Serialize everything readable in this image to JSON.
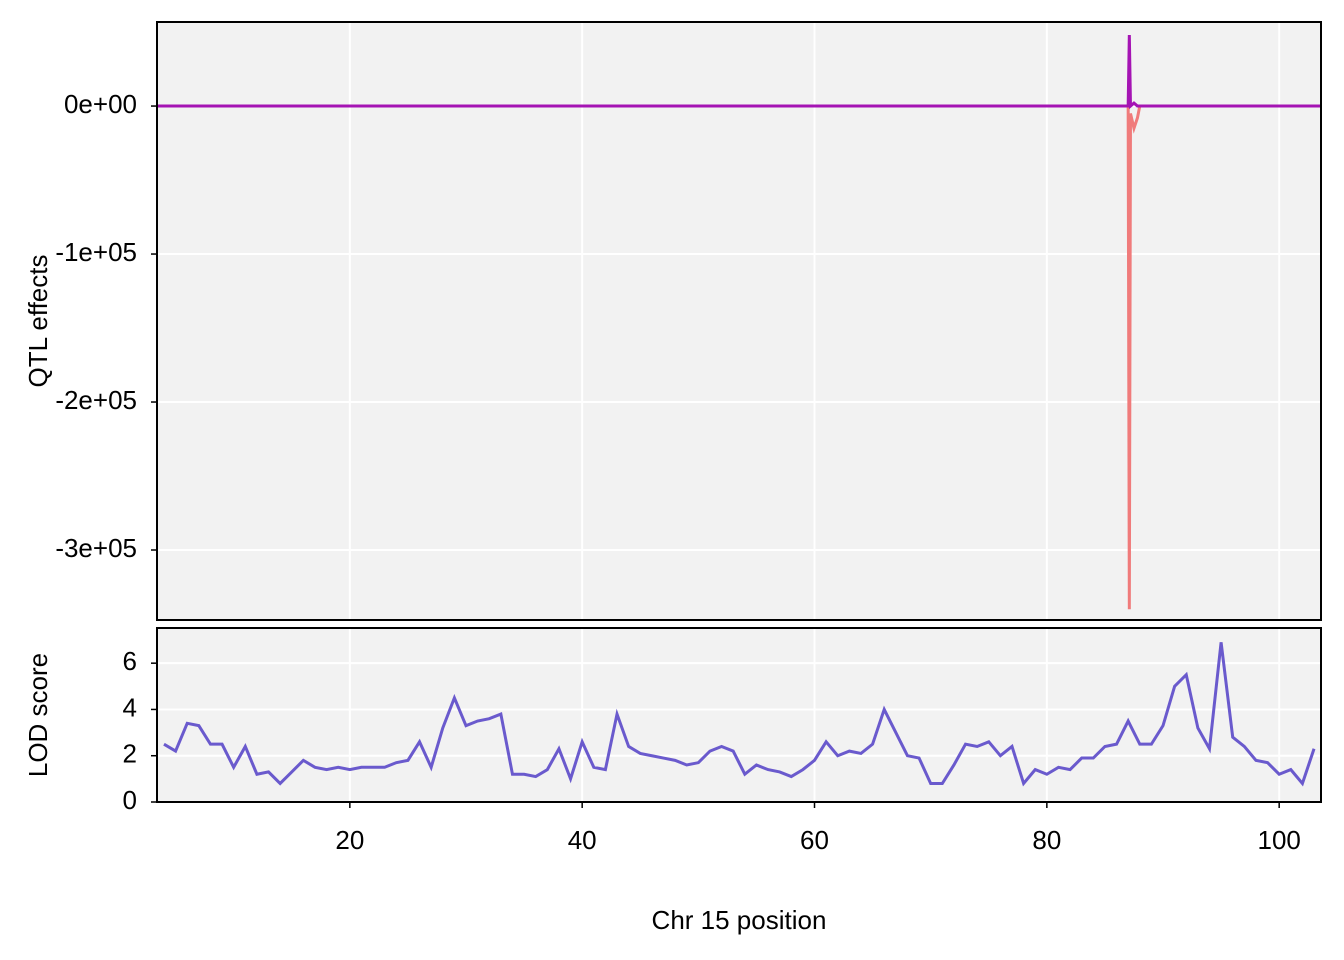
{
  "chart_data": [
    {
      "type": "line",
      "ylabel": "QTL effects",
      "x": [
        3.4,
        86.9,
        87.0,
        87.1,
        87.2,
        87.5,
        87.8,
        88.0,
        103.6
      ],
      "series": [
        {
          "color": "#f07b7b",
          "values": [
            0,
            0,
            0,
            -340000,
            -5000,
            -15000,
            -8000,
            0,
            0
          ]
        },
        {
          "color": "#a514b4",
          "values": [
            0,
            0,
            0,
            48000,
            0,
            2000,
            0,
            0,
            0
          ]
        }
      ],
      "xlim": [
        3.4,
        103.6
      ],
      "ylim": [
        -347300,
        56800
      ],
      "xticks": [
        20,
        40,
        60,
        80,
        100
      ],
      "yticks": [
        {
          "value": 0,
          "label": "0e+00"
        },
        {
          "value": -100000,
          "label": "-1e+05"
        },
        {
          "value": -200000,
          "label": "-2e+05"
        },
        {
          "value": -300000,
          "label": "-3e+05"
        }
      ],
      "grid": true
    },
    {
      "type": "line",
      "ylabel": "LOD score",
      "xlabel": "Chr 15 position",
      "x": [
        4,
        5,
        6,
        7,
        8,
        9,
        10,
        11,
        12,
        13,
        14,
        15,
        16,
        17,
        18,
        19,
        20,
        21,
        22,
        23,
        24,
        25,
        26,
        27,
        28,
        29,
        30,
        31,
        32,
        33,
        34,
        35,
        36,
        37,
        38,
        39,
        40,
        41,
        42,
        43,
        44,
        45,
        46,
        47,
        48,
        49,
        50,
        51,
        52,
        53,
        54,
        55,
        56,
        57,
        58,
        59,
        60,
        61,
        62,
        63,
        64,
        65,
        66,
        67,
        68,
        69,
        70,
        71,
        72,
        73,
        74,
        75,
        76,
        77,
        78,
        79,
        80,
        81,
        82,
        83,
        84,
        85,
        86,
        87,
        88,
        89,
        90,
        91,
        92,
        93,
        94,
        95,
        96,
        97,
        98,
        99,
        100,
        101,
        102,
        103
      ],
      "series": [
        {
          "color": "#6a5acd",
          "values": [
            2.5,
            2.2,
            3.4,
            3.3,
            2.5,
            2.5,
            1.5,
            2.4,
            1.2,
            1.3,
            0.8,
            1.3,
            1.8,
            1.5,
            1.4,
            1.5,
            1.4,
            1.5,
            1.5,
            1.5,
            1.7,
            1.8,
            2.6,
            1.5,
            3.2,
            4.5,
            3.3,
            3.5,
            3.6,
            3.8,
            1.2,
            1.2,
            1.1,
            1.4,
            2.3,
            1.0,
            2.6,
            1.5,
            1.4,
            3.8,
            2.4,
            2.1,
            2.0,
            1.9,
            1.8,
            1.6,
            1.7,
            2.2,
            2.4,
            2.2,
            1.2,
            1.6,
            1.4,
            1.3,
            1.1,
            1.4,
            1.8,
            2.6,
            2.0,
            2.2,
            2.1,
            2.5,
            4.0,
            3.0,
            2.0,
            1.9,
            0.8,
            0.8,
            1.6,
            2.5,
            2.4,
            2.6,
            2.0,
            2.4,
            0.8,
            1.4,
            1.2,
            1.5,
            1.4,
            1.9,
            1.9,
            2.4,
            2.5,
            3.5,
            2.5,
            2.5,
            3.3,
            5.0,
            5.5,
            3.2,
            2.3,
            6.9,
            2.8,
            2.4,
            1.8,
            1.7,
            1.2,
            1.4,
            0.8,
            2.3
          ]
        }
      ],
      "xlim": [
        3.4,
        103.6
      ],
      "ylim": [
        0,
        7.52
      ],
      "xticks": [
        20,
        40,
        60,
        80,
        100
      ],
      "yticks": [
        0,
        2,
        4,
        6
      ],
      "grid": true
    }
  ]
}
